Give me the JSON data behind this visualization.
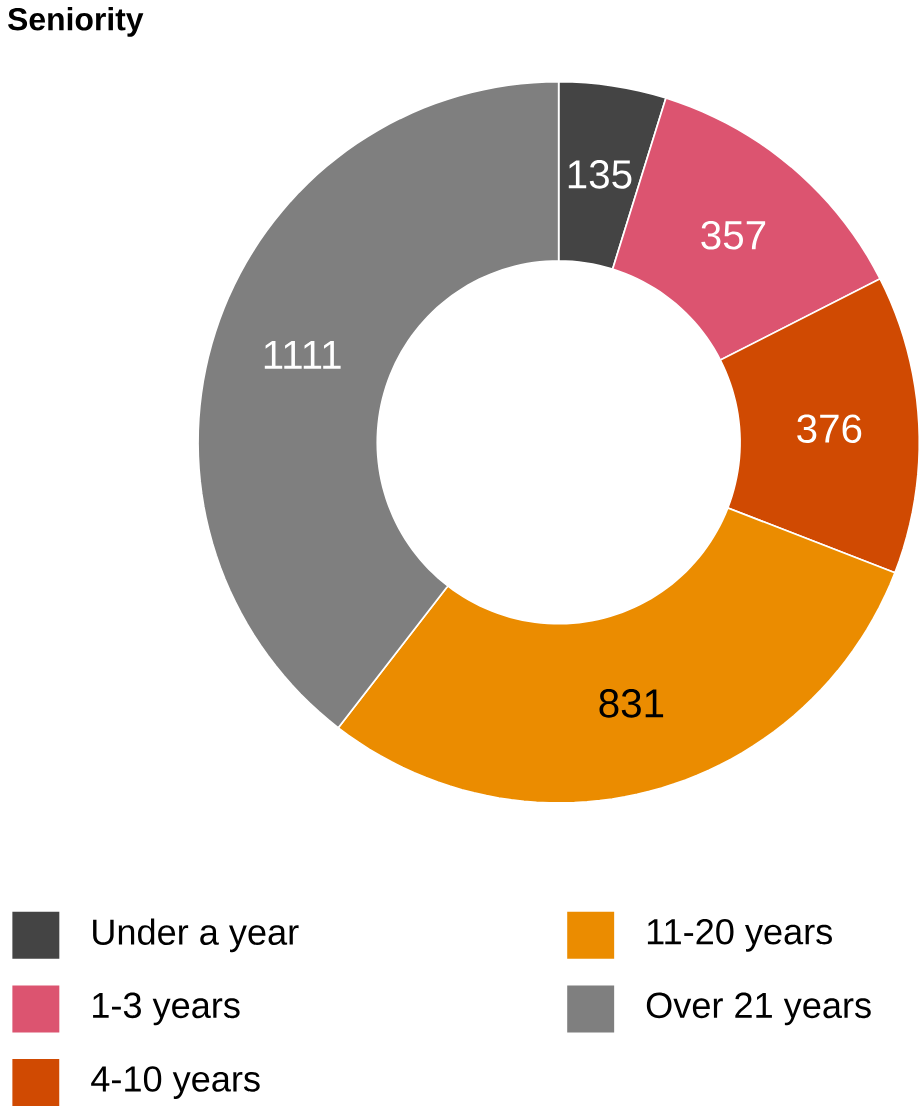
{
  "chart_data": {
    "type": "donut",
    "title": "Seniority",
    "categories": [
      "Under a year",
      "1-3 years",
      "4-10 years",
      "11-20 years",
      "Over 21 years"
    ],
    "values": [
      135,
      357,
      376,
      831,
      1111
    ],
    "colors": [
      "#444444",
      "#dc5470",
      "#d04a02",
      "#eb8c00",
      "#7f7f7f"
    ],
    "data_labels": true,
    "legend": "bottom"
  }
}
